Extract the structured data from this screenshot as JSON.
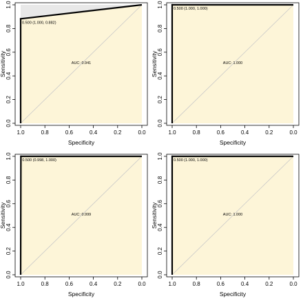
{
  "chart_data": [
    {
      "type": "line",
      "xlabel": "Specificity",
      "ylabel": "Sensitivity",
      "xlim": [
        1.0,
        0.0
      ],
      "ylim": [
        0.0,
        1.0
      ],
      "x_reversed": true,
      "xticks": [
        "1.0",
        "0.8",
        "0.6",
        "0.4",
        "0.2",
        "0.0"
      ],
      "yticks": [
        "0.0",
        "0.2",
        "0.4",
        "0.6",
        "0.8",
        "1.0"
      ],
      "auc_label": "AUC: 0.941",
      "threshold_label": "0.500 (1.000, 0.882)",
      "threshold_point": {
        "specificity": 1.0,
        "sensitivity": 0.882
      },
      "roc": {
        "specificity": [
          1.0,
          1.0,
          0.0
        ],
        "sensitivity": [
          0.0,
          0.882,
          1.0
        ]
      },
      "colors": {
        "auc_fill": "#fdf5d8",
        "ci_band": "#e8e8e8",
        "roc_line": "#000000",
        "diagonal": "#c8c8c8"
      }
    },
    {
      "type": "line",
      "xlabel": "Specificity",
      "ylabel": "Sensitivity",
      "xlim": [
        1.0,
        0.0
      ],
      "ylim": [
        0.0,
        1.0
      ],
      "x_reversed": true,
      "xticks": [
        "1.0",
        "0.8",
        "0.6",
        "0.4",
        "0.2",
        "0.0"
      ],
      "yticks": [
        "0.0",
        "0.2",
        "0.4",
        "0.6",
        "0.8",
        "1.0"
      ],
      "auc_label": "AUC: 1.000",
      "threshold_label": "0.500 (1.000, 1.000)",
      "threshold_point": {
        "specificity": 1.0,
        "sensitivity": 1.0
      },
      "roc": {
        "specificity": [
          1.0,
          1.0,
          0.0
        ],
        "sensitivity": [
          0.0,
          1.0,
          1.0
        ]
      },
      "colors": {
        "auc_fill": "#fdf5d8",
        "ci_band": "#e8e8e8",
        "roc_line": "#000000",
        "diagonal": "#c8c8c8"
      }
    },
    {
      "type": "line",
      "xlabel": "Specificity",
      "ylabel": "Sensitivity",
      "xlim": [
        1.0,
        0.0
      ],
      "ylim": [
        0.0,
        1.0
      ],
      "x_reversed": true,
      "xticks": [
        "1.0",
        "0.8",
        "0.6",
        "0.4",
        "0.2",
        "0.0"
      ],
      "yticks": [
        "0.0",
        "0.2",
        "0.4",
        "0.6",
        "0.8",
        "1.0"
      ],
      "auc_label": "AUC: 0.999",
      "threshold_label": "0.500 (0.998, 1.000)",
      "threshold_point": {
        "specificity": 0.998,
        "sensitivity": 1.0
      },
      "roc": {
        "specificity": [
          1.0,
          0.998,
          0.0
        ],
        "sensitivity": [
          0.0,
          1.0,
          1.0
        ]
      },
      "colors": {
        "auc_fill": "#fdf5d8",
        "ci_band": "#e8e8e8",
        "roc_line": "#000000",
        "diagonal": "#c8c8c8"
      }
    },
    {
      "type": "line",
      "xlabel": "Specificity",
      "ylabel": "Sensitivity",
      "xlim": [
        1.0,
        0.0
      ],
      "ylim": [
        0.0,
        1.0
      ],
      "x_reversed": true,
      "xticks": [
        "1.0",
        "0.8",
        "0.6",
        "0.4",
        "0.2",
        "0.0"
      ],
      "yticks": [
        "0.0",
        "0.2",
        "0.4",
        "0.6",
        "0.8",
        "1.0"
      ],
      "auc_label": "AUC: 1.000",
      "threshold_label": "0.500 (1.000, 1.000)",
      "threshold_point": {
        "specificity": 1.0,
        "sensitivity": 1.0
      },
      "roc": {
        "specificity": [
          1.0,
          1.0,
          0.0
        ],
        "sensitivity": [
          0.0,
          1.0,
          1.0
        ]
      },
      "colors": {
        "auc_fill": "#fdf5d8",
        "ci_band": "#e8e8e8",
        "roc_line": "#000000",
        "diagonal": "#c8c8c8"
      }
    }
  ]
}
